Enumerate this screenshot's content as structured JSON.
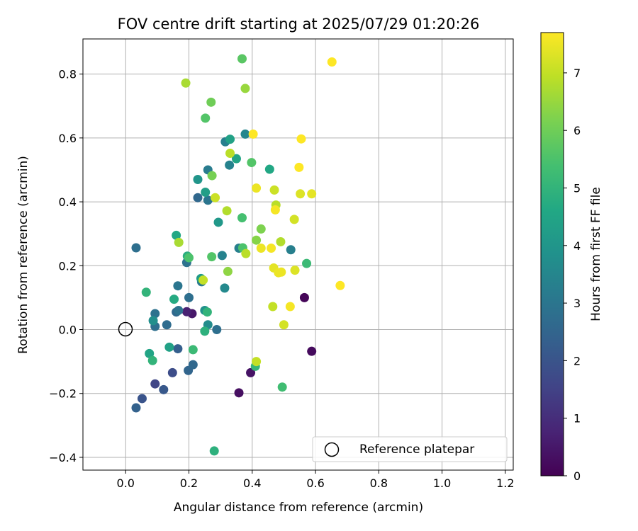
{
  "chart_data": {
    "type": "scatter",
    "title": "FOV centre drift starting at 2025/07/29 01:20:26",
    "xlabel": "Angular distance from reference (arcmin)",
    "ylabel": "Rotation from reference (arcmin)",
    "xlim": [
      -0.135,
      1.225
    ],
    "ylim": [
      -0.44,
      0.91
    ],
    "xticks": [
      0.0,
      0.2,
      0.4,
      0.6,
      0.8,
      1.0,
      1.2
    ],
    "xtick_labels": [
      "0.0",
      "0.2",
      "0.4",
      "0.6",
      "0.8",
      "1.0",
      "1.2"
    ],
    "yticks": [
      -0.4,
      -0.2,
      0.0,
      0.2,
      0.4,
      0.6,
      0.8
    ],
    "ytick_labels": [
      "−0.4",
      "−0.2",
      "0.0",
      "0.2",
      "0.4",
      "0.6",
      "0.8"
    ],
    "grid": true,
    "colormap": "viridis",
    "colorbar": {
      "label": "Hours from first FF file",
      "range": [
        0,
        7.7
      ],
      "ticks": [
        0,
        1,
        2,
        3,
        4,
        5,
        6,
        7
      ],
      "tick_labels": [
        "0",
        "1",
        "2",
        "3",
        "4",
        "5",
        "6",
        "7"
      ]
    },
    "reference": {
      "label": "Reference platepar",
      "x": 0.0,
      "y": 0.0
    },
    "legend_position": "lower-right",
    "points": [
      {
        "x": 0.565,
        "y": 0.1,
        "hours": 0.1
      },
      {
        "x": 0.588,
        "y": -0.068,
        "hours": 0.2
      },
      {
        "x": 0.358,
        "y": -0.198,
        "hours": 0.3
      },
      {
        "x": 0.395,
        "y": -0.135,
        "hours": 0.4
      },
      {
        "x": 0.21,
        "y": 0.05,
        "hours": 0.5
      },
      {
        "x": 0.193,
        "y": 0.056,
        "hours": 0.7
      },
      {
        "x": 0.093,
        "y": -0.17,
        "hours": 1.6
      },
      {
        "x": 0.148,
        "y": -0.135,
        "hours": 1.8
      },
      {
        "x": 0.052,
        "y": -0.216,
        "hours": 2.0
      },
      {
        "x": 0.12,
        "y": -0.188,
        "hours": 2.1
      },
      {
        "x": 0.033,
        "y": -0.245,
        "hours": 2.4
      },
      {
        "x": 0.165,
        "y": -0.06,
        "hours": 2.3
      },
      {
        "x": 0.198,
        "y": -0.128,
        "hours": 2.5
      },
      {
        "x": 0.213,
        "y": -0.11,
        "hours": 2.6
      },
      {
        "x": 0.288,
        "y": 0.0,
        "hours": 2.8
      },
      {
        "x": 0.093,
        "y": 0.05,
        "hours": 2.9
      },
      {
        "x": 0.093,
        "y": 0.01,
        "hours": 2.8
      },
      {
        "x": 0.13,
        "y": 0.015,
        "hours": 2.7
      },
      {
        "x": 0.16,
        "y": 0.055,
        "hours": 2.6
      },
      {
        "x": 0.167,
        "y": 0.06,
        "hours": 2.9
      },
      {
        "x": 0.2,
        "y": 0.1,
        "hours": 2.8
      },
      {
        "x": 0.165,
        "y": 0.137,
        "hours": 3.0
      },
      {
        "x": 0.193,
        "y": 0.21,
        "hours": 2.9
      },
      {
        "x": 0.24,
        "y": 0.15,
        "hours": 3.1
      },
      {
        "x": 0.033,
        "y": 0.256,
        "hours": 2.8
      },
      {
        "x": 0.228,
        "y": 0.413,
        "hours": 2.6
      },
      {
        "x": 0.26,
        "y": 0.405,
        "hours": 3.0
      },
      {
        "x": 0.26,
        "y": 0.5,
        "hours": 3.2
      },
      {
        "x": 0.315,
        "y": 0.588,
        "hours": 3.3
      },
      {
        "x": 0.328,
        "y": 0.515,
        "hours": 3.4
      },
      {
        "x": 0.378,
        "y": 0.612,
        "hours": 3.5
      },
      {
        "x": 0.358,
        "y": 0.255,
        "hours": 3.3
      },
      {
        "x": 0.305,
        "y": 0.232,
        "hours": 3.4
      },
      {
        "x": 0.522,
        "y": 0.25,
        "hours": 3.3
      },
      {
        "x": 0.313,
        "y": 0.13,
        "hours": 3.6
      },
      {
        "x": 0.26,
        "y": 0.015,
        "hours": 3.7
      },
      {
        "x": 0.087,
        "y": 0.028,
        "hours": 3.8
      },
      {
        "x": 0.25,
        "y": 0.06,
        "hours": 3.9
      },
      {
        "x": 0.228,
        "y": 0.47,
        "hours": 4.0
      },
      {
        "x": 0.293,
        "y": 0.336,
        "hours": 4.1
      },
      {
        "x": 0.238,
        "y": 0.16,
        "hours": 4.2
      },
      {
        "x": 0.252,
        "y": 0.43,
        "hours": 4.3
      },
      {
        "x": 0.33,
        "y": 0.596,
        "hours": 4.4
      },
      {
        "x": 0.35,
        "y": 0.535,
        "hours": 4.5
      },
      {
        "x": 0.455,
        "y": 0.502,
        "hours": 4.6
      },
      {
        "x": 0.16,
        "y": 0.295,
        "hours": 4.6
      },
      {
        "x": 0.075,
        "y": -0.075,
        "hours": 4.5
      },
      {
        "x": 0.138,
        "y": -0.055,
        "hours": 4.4
      },
      {
        "x": 0.153,
        "y": 0.095,
        "hours": 4.7
      },
      {
        "x": 0.195,
        "y": 0.23,
        "hours": 4.8
      },
      {
        "x": 0.25,
        "y": -0.005,
        "hours": 4.9
      },
      {
        "x": 0.258,
        "y": 0.055,
        "hours": 5.0
      },
      {
        "x": 0.065,
        "y": 0.117,
        "hours": 5.0
      },
      {
        "x": 0.085,
        "y": -0.097,
        "hours": 5.0
      },
      {
        "x": 0.213,
        "y": -0.063,
        "hours": 5.2
      },
      {
        "x": 0.28,
        "y": -0.38,
        "hours": 4.9
      },
      {
        "x": 0.41,
        "y": -0.115,
        "hours": 5.1
      },
      {
        "x": 0.495,
        "y": -0.18,
        "hours": 5.3
      },
      {
        "x": 0.572,
        "y": 0.207,
        "hours": 5.2
      },
      {
        "x": 0.368,
        "y": 0.35,
        "hours": 5.4
      },
      {
        "x": 0.37,
        "y": 0.256,
        "hours": 5.5
      },
      {
        "x": 0.2,
        "y": 0.225,
        "hours": 5.5
      },
      {
        "x": 0.272,
        "y": 0.228,
        "hours": 5.6
      },
      {
        "x": 0.398,
        "y": 0.523,
        "hours": 5.6
      },
      {
        "x": 0.368,
        "y": 0.848,
        "hours": 5.7
      },
      {
        "x": 0.252,
        "y": 0.662,
        "hours": 5.6
      },
      {
        "x": 0.27,
        "y": 0.712,
        "hours": 6.0
      },
      {
        "x": 0.273,
        "y": 0.482,
        "hours": 6.1
      },
      {
        "x": 0.428,
        "y": 0.315,
        "hours": 6.2
      },
      {
        "x": 0.413,
        "y": 0.28,
        "hours": 6.3
      },
      {
        "x": 0.323,
        "y": 0.182,
        "hours": 6.4
      },
      {
        "x": 0.378,
        "y": 0.755,
        "hours": 6.5
      },
      {
        "x": 0.19,
        "y": 0.772,
        "hours": 6.7
      },
      {
        "x": 0.168,
        "y": 0.273,
        "hours": 6.7
      },
      {
        "x": 0.32,
        "y": 0.372,
        "hours": 6.8
      },
      {
        "x": 0.33,
        "y": 0.552,
        "hours": 6.9
      },
      {
        "x": 0.38,
        "y": 0.238,
        "hours": 6.9
      },
      {
        "x": 0.245,
        "y": 0.155,
        "hours": 7.0
      },
      {
        "x": 0.413,
        "y": -0.1,
        "hours": 7.0
      },
      {
        "x": 0.475,
        "y": 0.39,
        "hours": 6.9
      },
      {
        "x": 0.49,
        "y": 0.275,
        "hours": 6.8
      },
      {
        "x": 0.465,
        "y": 0.072,
        "hours": 7.0
      },
      {
        "x": 0.283,
        "y": 0.413,
        "hours": 7.1
      },
      {
        "x": 0.47,
        "y": 0.437,
        "hours": 7.1
      },
      {
        "x": 0.5,
        "y": 0.015,
        "hours": 7.2
      },
      {
        "x": 0.533,
        "y": 0.345,
        "hours": 7.2
      },
      {
        "x": 0.535,
        "y": 0.186,
        "hours": 7.3
      },
      {
        "x": 0.552,
        "y": 0.425,
        "hours": 7.3
      },
      {
        "x": 0.588,
        "y": 0.425,
        "hours": 7.4
      },
      {
        "x": 0.468,
        "y": 0.193,
        "hours": 7.4
      },
      {
        "x": 0.483,
        "y": 0.178,
        "hours": 7.5
      },
      {
        "x": 0.492,
        "y": 0.18,
        "hours": 7.5
      },
      {
        "x": 0.413,
        "y": 0.443,
        "hours": 7.5
      },
      {
        "x": 0.428,
        "y": 0.255,
        "hours": 7.5
      },
      {
        "x": 0.46,
        "y": 0.255,
        "hours": 7.6
      },
      {
        "x": 0.473,
        "y": 0.375,
        "hours": 7.6
      },
      {
        "x": 0.52,
        "y": 0.072,
        "hours": 7.6
      },
      {
        "x": 0.548,
        "y": 0.508,
        "hours": 7.7
      },
      {
        "x": 0.555,
        "y": 0.597,
        "hours": 7.7
      },
      {
        "x": 0.403,
        "y": 0.612,
        "hours": 7.7
      },
      {
        "x": 0.652,
        "y": 0.838,
        "hours": 7.7
      },
      {
        "x": 0.678,
        "y": 0.138,
        "hours": 7.7
      }
    ]
  }
}
